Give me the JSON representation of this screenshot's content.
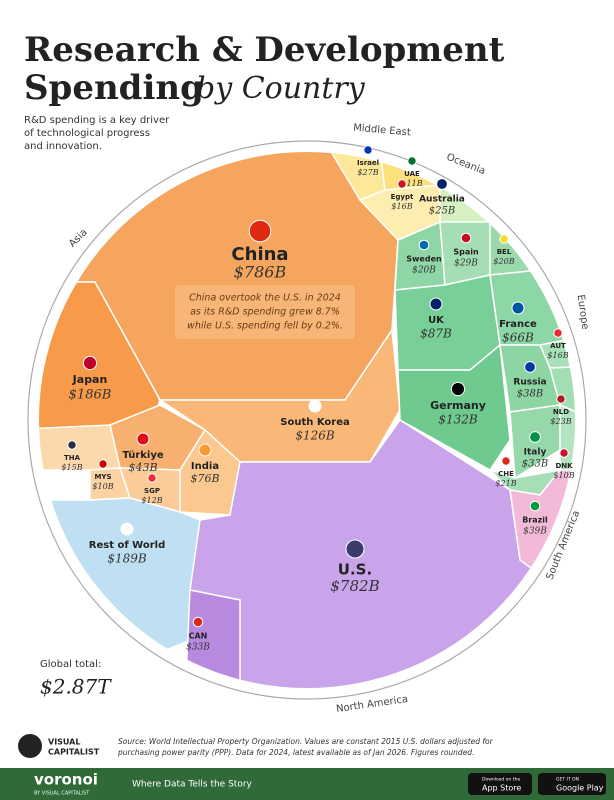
{
  "header": {
    "title_line1": "Research & Development",
    "title_line2": "Spending",
    "title_italic": "by Country",
    "subtitle": [
      "R&D spending is a key driver",
      "of technological progress",
      "and innovation."
    ]
  },
  "annotation": [
    "China overtook the U.S. in 2024",
    "as its R&D spending grew 8.7%",
    "while U.S. spending fell by 0.2%."
  ],
  "regions": [
    "Middle East",
    "Oceania",
    "Asia",
    "Europe",
    "South America",
    "North America"
  ],
  "cells": [
    {
      "name": "China",
      "value": "$786B"
    },
    {
      "name": "Japan",
      "value": "$186B"
    },
    {
      "name": "South Korea",
      "value": "$126B"
    },
    {
      "name": "Türkiye",
      "value": "$43B"
    },
    {
      "name": "India",
      "value": "$76B"
    },
    {
      "name": "THA",
      "value": "$15B"
    },
    {
      "name": "MYS",
      "value": "$10B"
    },
    {
      "name": "SGP",
      "value": "$12B"
    },
    {
      "name": "Rest of World",
      "value": "$189B"
    },
    {
      "name": "U.S.",
      "value": "$782B"
    },
    {
      "name": "CAN",
      "value": "$33B"
    },
    {
      "name": "Israel",
      "value": "$27B"
    },
    {
      "name": "UAE",
      "value": "$11B"
    },
    {
      "name": "Egypt",
      "value": "$16B"
    },
    {
      "name": "Australia",
      "value": "$25B"
    },
    {
      "name": "Sweden",
      "value": "$20B"
    },
    {
      "name": "Spain",
      "value": "$29B"
    },
    {
      "name": "BEL",
      "value": "$20B"
    },
    {
      "name": "UK",
      "value": "$87B"
    },
    {
      "name": "France",
      "value": "$66B"
    },
    {
      "name": "AUT",
      "value": "$16B"
    },
    {
      "name": "Germany",
      "value": "$132B"
    },
    {
      "name": "Russia",
      "value": "$38B"
    },
    {
      "name": "NLD",
      "value": "$23B"
    },
    {
      "name": "Italy",
      "value": "$33B"
    },
    {
      "name": "DNK",
      "value": "$10B"
    },
    {
      "name": "CHE",
      "value": "$21B"
    },
    {
      "name": "Brazil",
      "value": "$39B"
    }
  ],
  "total": {
    "label": "Global total:",
    "value": "$2.87T"
  },
  "footer": {
    "logo_line1": "VISUAL",
    "logo_line2": "CAPITALIST",
    "source": [
      "Source: World Intellectual Property Organization. Values are constant 2015 U.S. dollars adjusted for",
      "purchasing power parity (PPP). Data for 2024, latest available as of Jan 2026. Figures rounded."
    ],
    "brand": "voronoi",
    "brand_sub": "BY VISUAL CAPITALIST",
    "tagline": "Where Data Tells the Story",
    "app_small": "Download on the",
    "app": "App Store",
    "google_small": "GET IT ON",
    "google": "Google Play"
  }
}
